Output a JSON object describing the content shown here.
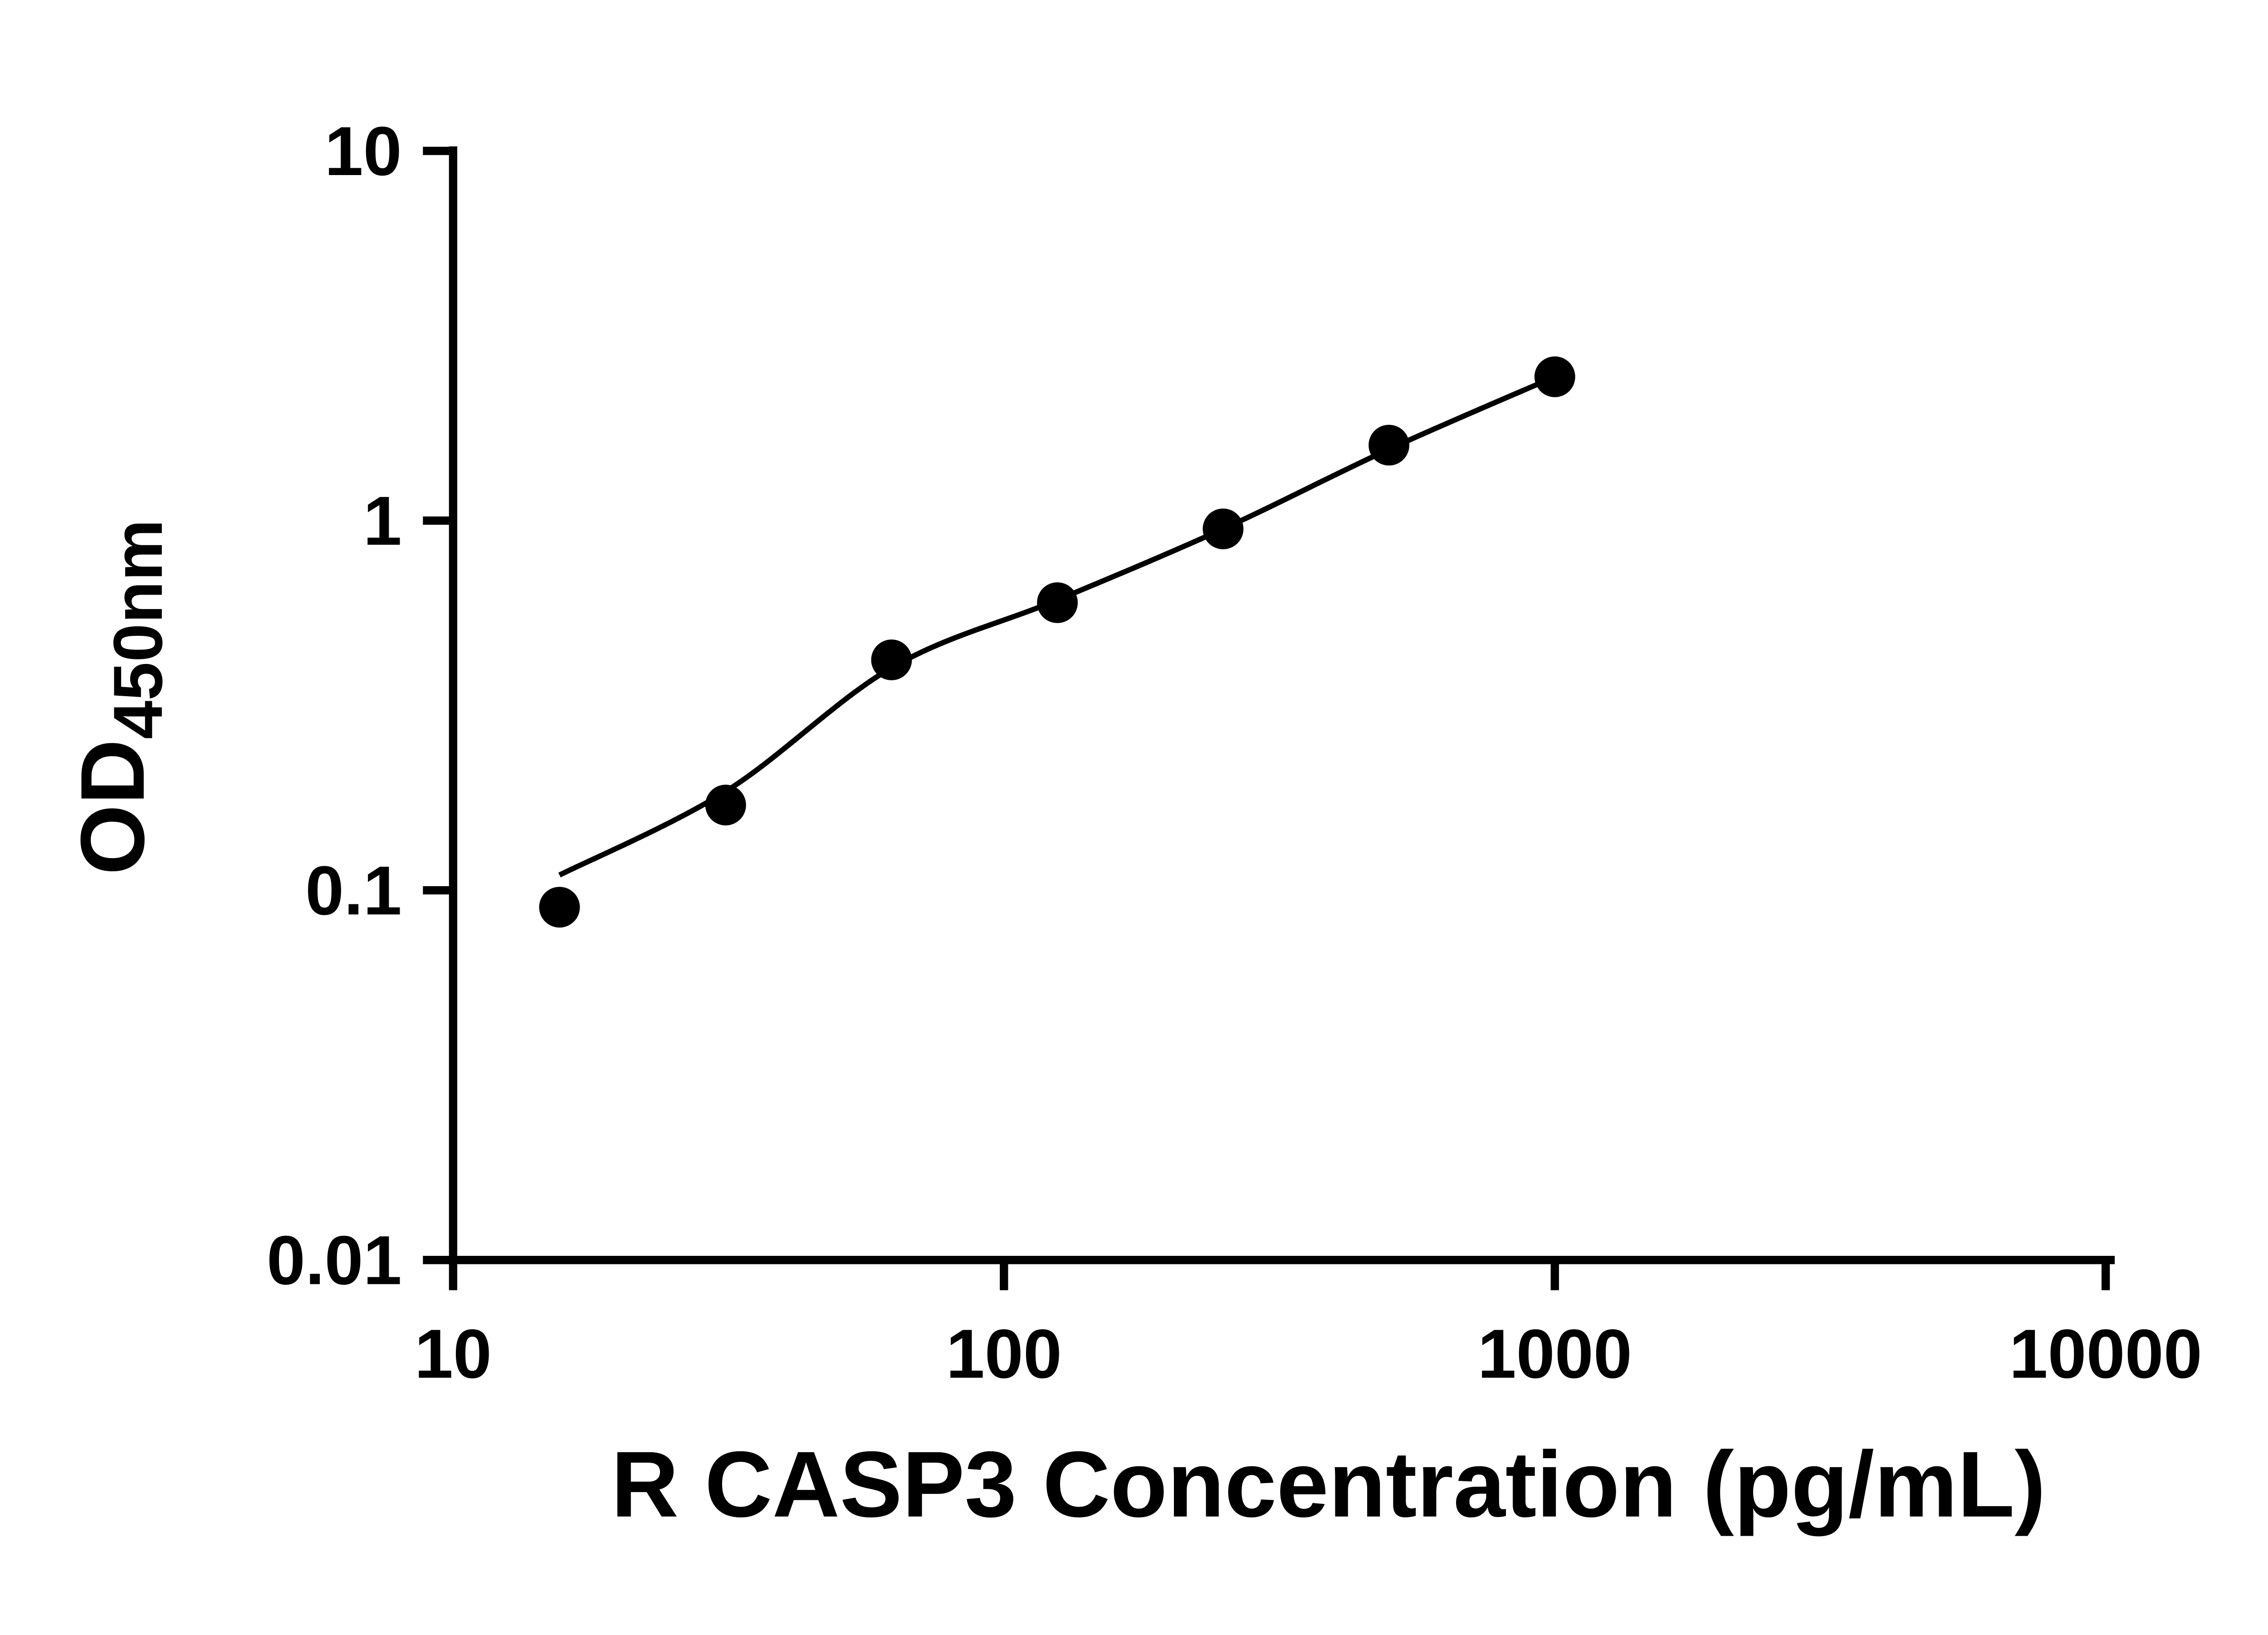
{
  "chart_data": {
    "type": "scatter",
    "title": "",
    "xlabel": "R CASP3 Concentration (pg/mL)",
    "ylabel_main": "OD",
    "ylabel_sub": "450nm",
    "x_scale": "log10",
    "y_scale": "log10",
    "xlim": [
      10,
      10000
    ],
    "ylim": [
      0.01,
      10
    ],
    "grid": false,
    "legend": null,
    "background": "#ffffff",
    "axis_color": "#000000",
    "point_color": "#000000",
    "line_color": "#000000",
    "x_ticks": [
      {
        "value": 10,
        "label": "10"
      },
      {
        "value": 100,
        "label": "100"
      },
      {
        "value": 1000,
        "label": "1000"
      },
      {
        "value": 10000,
        "label": "10000"
      }
    ],
    "y_ticks": [
      {
        "value": 0.01,
        "label": "0.01"
      },
      {
        "value": 0.1,
        "label": "0.1"
      },
      {
        "value": 1,
        "label": "1"
      },
      {
        "value": 10,
        "label": "10"
      }
    ],
    "points": [
      {
        "x": 15.6,
        "y": 0.09
      },
      {
        "x": 31.25,
        "y": 0.17
      },
      {
        "x": 62.5,
        "y": 0.42
      },
      {
        "x": 125,
        "y": 0.6
      },
      {
        "x": 250,
        "y": 0.95
      },
      {
        "x": 500,
        "y": 1.6
      },
      {
        "x": 1000,
        "y": 2.45
      }
    ],
    "fit_curve": [
      {
        "x": 15.6,
        "y": 0.11
      },
      {
        "x": 31.25,
        "y": 0.185
      },
      {
        "x": 62.5,
        "y": 0.4
      },
      {
        "x": 125,
        "y": 0.61
      },
      {
        "x": 250,
        "y": 0.95
      },
      {
        "x": 500,
        "y": 1.56
      },
      {
        "x": 1000,
        "y": 2.45
      }
    ]
  }
}
